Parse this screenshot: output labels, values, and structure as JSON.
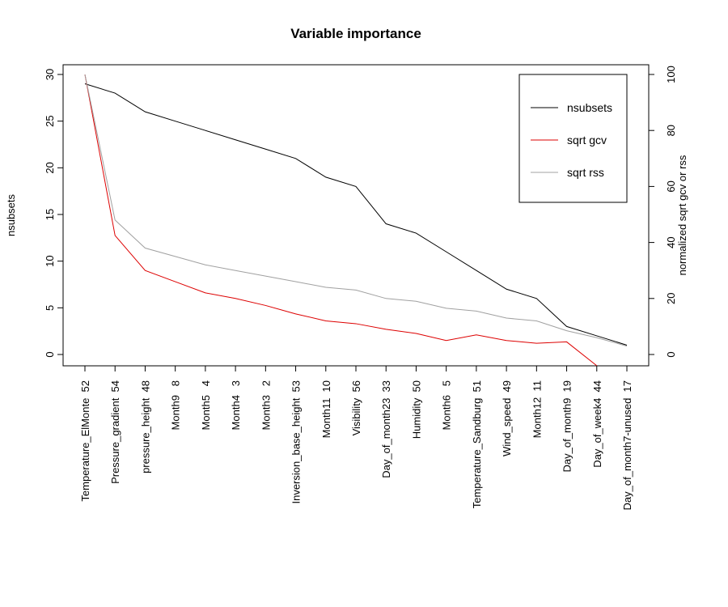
{
  "chart_data": {
    "type": "line",
    "title": "Variable importance",
    "ylabel_left": "nsubsets",
    "ylabel_right": "normalized sqrt gcv or rss",
    "ylim_left": [
      0,
      30
    ],
    "ylim_right": [
      0,
      100
    ],
    "yticks_left": [
      "0",
      "5",
      "10",
      "15",
      "20",
      "25",
      "30"
    ],
    "yticks_right": [
      "0",
      "20",
      "40",
      "60",
      "80",
      "100"
    ],
    "categories": [
      "Temperature_ElMonte  52",
      "Pressure_gradient  54",
      "pressure_height  48",
      "Month9   8",
      "Month5   4",
      "Month4   3",
      "Month3   2",
      "Inversion_base_height  53",
      "Month11  10",
      "Visibility  56",
      "Day_of_month23  33",
      "Humidity  50",
      "Month6   5",
      "Temperature_Sandburg  51",
      "Wind_speed  49",
      "Month12  11",
      "Day_of_month9  19",
      "Day_of_week4  44",
      "Day_of_month7-unused  17"
    ],
    "series": [
      {
        "name": "nsubsets",
        "axis": "left",
        "color": "#000000",
        "values": [
          29,
          28,
          26,
          25,
          24,
          23,
          22,
          21,
          19,
          18,
          14,
          13,
          11,
          9,
          7,
          6,
          3,
          2,
          1
        ]
      },
      {
        "name": "sqrt gcv",
        "axis": "right",
        "color": "#dd0000",
        "values": [
          100,
          42.5,
          30,
          26,
          22,
          20,
          17.5,
          14.5,
          12,
          11,
          9,
          7.5,
          5,
          7,
          5,
          4,
          4.5,
          -4,
          null
        ]
      },
      {
        "name": "sqrt rss",
        "axis": "right",
        "color": "#a0a0a0",
        "values": [
          100,
          48,
          38,
          35,
          32,
          30,
          28,
          26,
          24,
          23,
          20,
          19,
          16.5,
          15.5,
          13,
          12,
          8.5,
          6,
          3
        ]
      }
    ],
    "legend_position": "top-right"
  }
}
